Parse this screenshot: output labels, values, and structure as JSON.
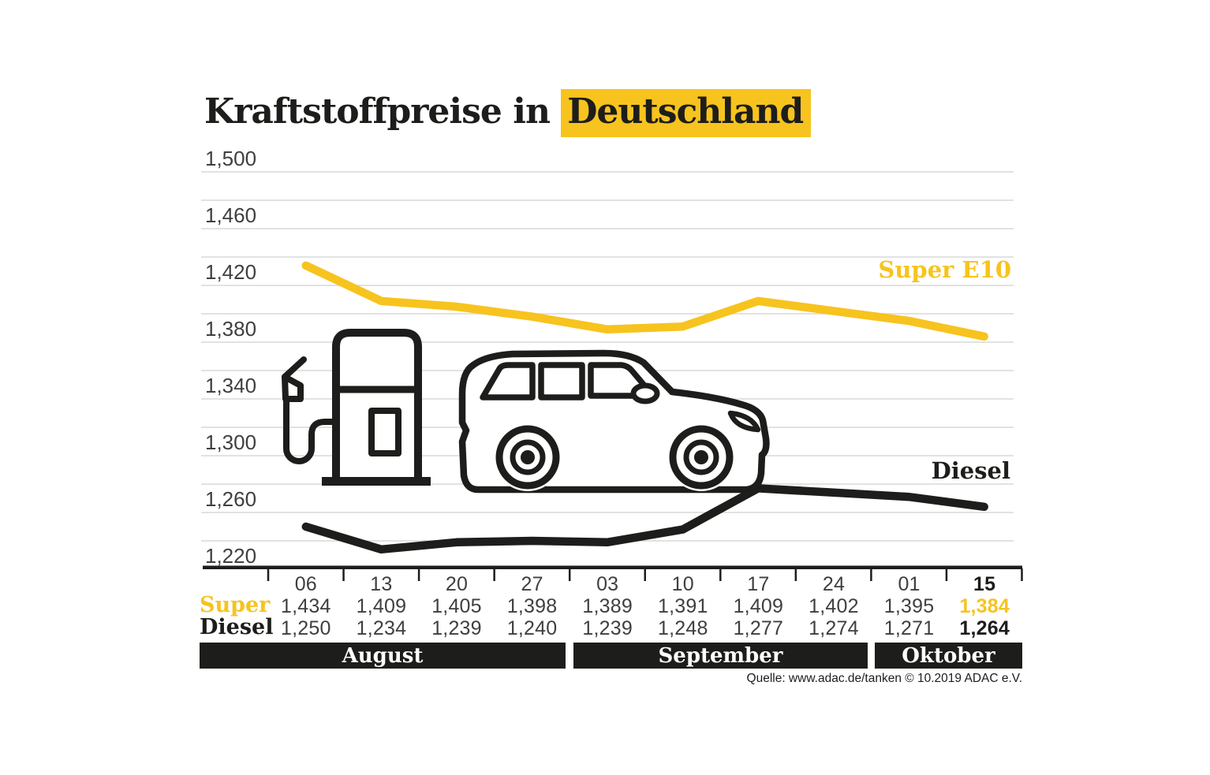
{
  "colors": {
    "accent": "#F7C31E",
    "ink": "#1D1D1B",
    "muted_text": "#3F3F3F",
    "gridline": "#D9D9D9"
  },
  "title": {
    "prefix": "Kraftstoffpreise in",
    "highlight": "Deutschland"
  },
  "chart_data": {
    "type": "line",
    "title": "Kraftstoffpreise in Deutschland",
    "categories": [
      "06",
      "13",
      "20",
      "27",
      "03",
      "10",
      "17",
      "24",
      "01",
      "15"
    ],
    "month_groups": [
      {
        "label": "August",
        "columns": 4
      },
      {
        "label": "September",
        "columns": 4
      },
      {
        "label": "Oktober",
        "columns": 2
      }
    ],
    "series": [
      {
        "name": "Super E10",
        "table_label": "Super",
        "color": "#F7C31E",
        "values": [
          1434,
          1409,
          1405,
          1398,
          1389,
          1391,
          1409,
          1402,
          1395,
          1384
        ],
        "values_display": [
          "1,434",
          "1,409",
          "1,405",
          "1,398",
          "1,389",
          "1,391",
          "1,409",
          "1,402",
          "1,395",
          "1,384"
        ]
      },
      {
        "name": "Diesel",
        "table_label": "Diesel",
        "color": "#1D1D1B",
        "values": [
          1250,
          1234,
          1239,
          1240,
          1239,
          1248,
          1277,
          1274,
          1271,
          1264
        ],
        "values_display": [
          "1,250",
          "1,234",
          "1,239",
          "1,240",
          "1,239",
          "1,248",
          "1,277",
          "1,274",
          "1,271",
          "1,264"
        ]
      }
    ],
    "ylim": [
      1220,
      1500
    ],
    "grid_step": 20,
    "yticks": [
      {
        "value": 1500,
        "label": "1,500"
      },
      {
        "value": 1460,
        "label": "1,460"
      },
      {
        "value": 1420,
        "label": "1,420"
      },
      {
        "value": 1380,
        "label": "1,380"
      },
      {
        "value": 1340,
        "label": "1,340"
      },
      {
        "value": 1300,
        "label": "1,300"
      },
      {
        "value": 1260,
        "label": "1,260"
      },
      {
        "value": 1220,
        "label": "1,220"
      }
    ],
    "grid": true,
    "legend_position": "labels-on-lines-right"
  },
  "source": "Quelle: www.adac.de/tanken   © 10.2019  ADAC e.V."
}
